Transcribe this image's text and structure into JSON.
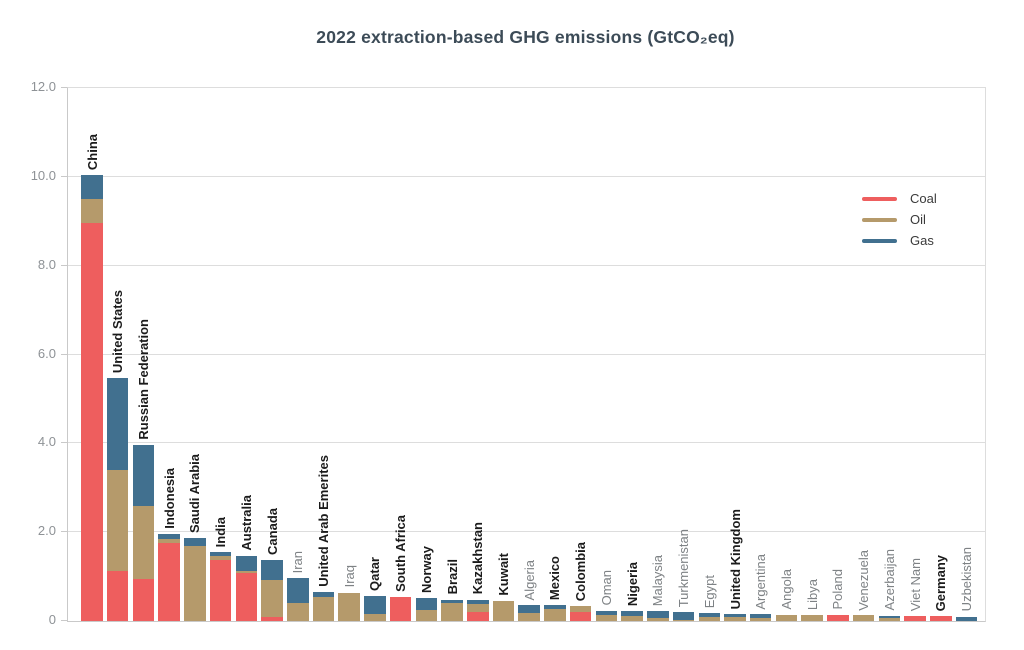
{
  "chart_data": {
    "type": "bar",
    "stacked": true,
    "title": "2022 extraction-based GHG emissions (GtCO₂eq)",
    "xlabel": "",
    "ylabel": "",
    "ylim": [
      0,
      12
    ],
    "ytick_values": [
      0,
      2,
      4,
      6,
      8,
      10,
      12
    ],
    "ytick_labels": [
      "0",
      "2.0",
      "4.0",
      "6.0",
      "8.0",
      "10.0",
      "12.0"
    ],
    "grid": "horizontal",
    "legend_position": "upper right",
    "categories": [
      "China",
      "United States",
      "Russian Federation",
      "Indonesia",
      "Saudi Arabia",
      "India",
      "Australia",
      "Canada",
      "Iran",
      "United Arab Emerites",
      "Iraq",
      "Qatar",
      "South Africa",
      "Norway",
      "Brazil",
      "Kazakhstan",
      "Kuwait",
      "Algeria",
      "Mexico",
      "Colombia",
      "Oman",
      "Nigeria",
      "Malaysia",
      "Turkmenistan",
      "Egypt",
      "United Kingdom",
      "Argentina",
      "Angola",
      "Libya",
      "Poland",
      "Venezuela",
      "Azerbaijan",
      "Viet Nam",
      "Germany",
      "Uzbekistan"
    ],
    "category_bold": [
      true,
      true,
      true,
      true,
      true,
      true,
      true,
      true,
      false,
      true,
      false,
      true,
      true,
      true,
      true,
      true,
      true,
      false,
      true,
      true,
      false,
      true,
      false,
      false,
      false,
      true,
      false,
      false,
      false,
      false,
      false,
      false,
      false,
      true,
      false
    ],
    "series": [
      {
        "name": "Coal",
        "color": "#EE5E5E",
        "values": [
          8.95,
          1.13,
          0.94,
          1.76,
          0,
          1.37,
          1.07,
          0.08,
          0,
          0,
          0,
          0,
          0.55,
          0,
          0,
          0.21,
          0,
          0,
          0,
          0.21,
          0,
          0,
          0,
          0,
          0,
          0,
          0,
          0,
          0,
          0.14,
          0,
          0,
          0.11,
          0.11,
          0
        ]
      },
      {
        "name": "Oil",
        "color": "#B59A6B",
        "values": [
          0.55,
          2.26,
          1.66,
          0.09,
          1.7,
          0.09,
          0.05,
          0.85,
          0.4,
          0.54,
          0.64,
          0.16,
          0,
          0.24,
          0.41,
          0.17,
          0.45,
          0.18,
          0.27,
          0.12,
          0.13,
          0.12,
          0.07,
          0.03,
          0.08,
          0.08,
          0.07,
          0.14,
          0.14,
          0,
          0.13,
          0.06,
          0,
          0,
          0
        ]
      },
      {
        "name": "Gas",
        "color": "#41708F",
        "values": [
          0.55,
          2.08,
          1.36,
          0.12,
          0.17,
          0.09,
          0.35,
          0.44,
          0.57,
          0.11,
          0,
          0.4,
          0,
          0.28,
          0.07,
          0.1,
          0,
          0.18,
          0.09,
          0,
          0.1,
          0.11,
          0.15,
          0.17,
          0.1,
          0.08,
          0.08,
          0,
          0,
          0,
          0,
          0.06,
          0,
          0,
          0.1
        ]
      }
    ]
  },
  "legend": [
    {
      "label": "Coal",
      "color": "#EE5E5E"
    },
    {
      "label": "Oil",
      "color": "#B59A6B"
    },
    {
      "label": "Gas",
      "color": "#41708F"
    }
  ],
  "colors": {
    "background": "#FFFFFF",
    "title_text": "#3C4B57",
    "axis_tick_text": "#8E9296",
    "category_label_bold": "#1B1B1B",
    "category_label_muted": "#7E8285",
    "gridline": "#DDDDDD"
  }
}
